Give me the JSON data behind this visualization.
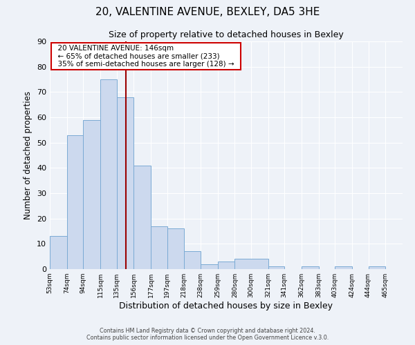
{
  "title": "20, VALENTINE AVENUE, BEXLEY, DA5 3HE",
  "subtitle": "Size of property relative to detached houses in Bexley",
  "xlabel": "Distribution of detached houses by size in Bexley",
  "ylabel": "Number of detached properties",
  "bar_left_edges": [
    53,
    74,
    94,
    115,
    135,
    156,
    177,
    197,
    218,
    238,
    259,
    280,
    321,
    341,
    362,
    383,
    403,
    424,
    444
  ],
  "bar_heights": [
    13,
    53,
    59,
    75,
    68,
    41,
    17,
    16,
    7,
    2,
    3,
    4,
    1,
    0,
    1,
    0,
    1,
    0,
    1
  ],
  "bar_widths": [
    21,
    20,
    21,
    20,
    21,
    21,
    20,
    21,
    20,
    21,
    21,
    41,
    20,
    21,
    21,
    20,
    21,
    20,
    21
  ],
  "tick_labels": [
    "53sqm",
    "74sqm",
    "94sqm",
    "115sqm",
    "135sqm",
    "156sqm",
    "177sqm",
    "197sqm",
    "218sqm",
    "238sqm",
    "259sqm",
    "280sqm",
    "300sqm",
    "321sqm",
    "341sqm",
    "362sqm",
    "383sqm",
    "403sqm",
    "424sqm",
    "444sqm",
    "465sqm"
  ],
  "tick_positions": [
    53,
    74,
    94,
    115,
    135,
    156,
    177,
    197,
    218,
    238,
    259,
    280,
    300,
    321,
    341,
    362,
    383,
    403,
    424,
    444,
    465
  ],
  "bar_color": "#ccd9ee",
  "bar_edge_color": "#7aaad4",
  "vline_x": 146,
  "vline_color": "#9b0000",
  "ylim": [
    0,
    90
  ],
  "yticks": [
    0,
    10,
    20,
    30,
    40,
    50,
    60,
    70,
    80,
    90
  ],
  "xlim_left": 53,
  "xlim_right": 486,
  "annotation_title": "20 VALENTINE AVENUE: 146sqm",
  "annotation_line1": "← 65% of detached houses are smaller (233)",
  "annotation_line2": "35% of semi-detached houses are larger (128) →",
  "annotation_box_facecolor": "#ffffff",
  "annotation_box_edgecolor": "#cc0000",
  "footer_line1": "Contains HM Land Registry data © Crown copyright and database right 2024.",
  "footer_line2": "Contains public sector information licensed under the Open Government Licence v.3.0.",
  "bg_color": "#eef2f8",
  "grid_color": "#ffffff",
  "title_fontsize": 11,
  "subtitle_fontsize": 9,
  "ylabel_fontsize": 8.5,
  "xlabel_fontsize": 9
}
